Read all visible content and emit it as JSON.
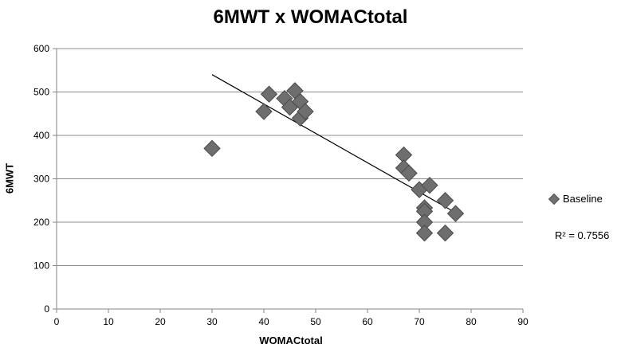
{
  "chart_data": {
    "type": "scatter",
    "title": "6MWT x WOMACtotal",
    "xlabel": "WOMACtotal",
    "ylabel": "6MWT",
    "xlim": [
      0,
      90
    ],
    "ylim": [
      0,
      600
    ],
    "xticks": [
      0,
      10,
      20,
      30,
      40,
      50,
      60,
      70,
      80,
      90
    ],
    "yticks": [
      0,
      100,
      200,
      300,
      400,
      500,
      600
    ],
    "grid": "horizontal",
    "legend_position": "right",
    "series": [
      {
        "name": "Baseline",
        "color": "#6e6e6e",
        "marker": "diamond",
        "points": [
          {
            "x": 30,
            "y": 370
          },
          {
            "x": 40,
            "y": 455
          },
          {
            "x": 41,
            "y": 495
          },
          {
            "x": 44,
            "y": 485
          },
          {
            "x": 45,
            "y": 465
          },
          {
            "x": 46,
            "y": 503
          },
          {
            "x": 47,
            "y": 478
          },
          {
            "x": 47,
            "y": 440
          },
          {
            "x": 48,
            "y": 455
          },
          {
            "x": 67,
            "y": 355
          },
          {
            "x": 67,
            "y": 325
          },
          {
            "x": 68,
            "y": 313
          },
          {
            "x": 70,
            "y": 275
          },
          {
            "x": 71,
            "y": 233
          },
          {
            "x": 71,
            "y": 225
          },
          {
            "x": 71,
            "y": 200
          },
          {
            "x": 71,
            "y": 175
          },
          {
            "x": 72,
            "y": 285
          },
          {
            "x": 75,
            "y": 250
          },
          {
            "x": 75,
            "y": 175
          },
          {
            "x": 77,
            "y": 220
          }
        ]
      }
    ],
    "trendline": {
      "type": "linear",
      "x_range": [
        30,
        77
      ],
      "y_range": [
        540,
        222
      ],
      "r_squared_label": "R² = 0.7556"
    }
  }
}
